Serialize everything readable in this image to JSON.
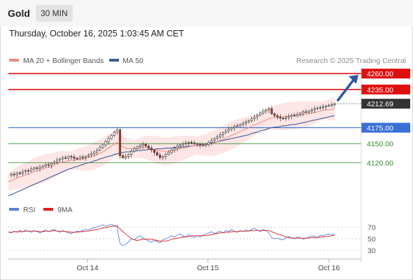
{
  "header": {
    "title": "Gold",
    "timeframe": "30 MIN",
    "datetime": "Thursday, October 16, 2025 1:03:45 AM CET"
  },
  "legend": {
    "ma20": "MA 20 + Bollinger Bands",
    "ma50": "MA 50",
    "credit": "Research © 2025 Trading Central"
  },
  "rsi_legend": {
    "rsi": "RSI",
    "ma": "9MA"
  },
  "colors": {
    "ma20": "#f08a80",
    "ma50": "#3b5b9a",
    "band": "#fde2e0",
    "resistance": "#e01010",
    "support": "#3a6fd8",
    "support_minor": "#2e8b2e",
    "arrow": "#2c57a8",
    "rsi": "#5b7fd8",
    "rsi_ma": "#e02020",
    "candle_up": "#ffffff",
    "candle_down": "#c0392b"
  },
  "chart_data": [
    {
      "type": "candlestick",
      "y_unit": "USD",
      "ylim": [
        4070,
        4270
      ],
      "x_ticks": [
        "Oct 14",
        "Oct 15",
        "Oct 16"
      ],
      "last_price": 4212.69,
      "levels": [
        {
          "label": "4260.00",
          "value": 4260,
          "kind": "resistance"
        },
        {
          "label": "4235.00",
          "value": 4235,
          "kind": "resistance"
        },
        {
          "label": "4175.00",
          "value": 4175,
          "kind": "support"
        },
        {
          "label": "4150.00",
          "value": 4150,
          "kind": "support-minor"
        },
        {
          "label": "4120.00",
          "value": 4120,
          "kind": "support-minor"
        }
      ],
      "last_price_label": "4212.69",
      "close_series": [
        4100,
        4102,
        4101,
        4104,
        4103,
        4106,
        4108,
        4107,
        4110,
        4112,
        4111,
        4113,
        4115,
        4117,
        4116,
        4119,
        4121,
        4124,
        4126,
        4128,
        4127,
        4130,
        4129,
        4127,
        4126,
        4129,
        4128,
        4130,
        4132,
        4134,
        4137,
        4140,
        4144,
        4148,
        4153,
        4158,
        4163,
        4168,
        4172,
        4131,
        4128,
        4130,
        4133,
        4138,
        4142,
        4145,
        4147,
        4149,
        4146,
        4143,
        4140,
        4136,
        4132,
        4128,
        4130,
        4133,
        4136,
        4140,
        4143,
        4146,
        4148,
        4150,
        4151,
        4152,
        4151,
        4150,
        4149,
        4148,
        4147,
        4149,
        4152,
        4155,
        4158,
        4161,
        4164,
        4167,
        4170,
        4173,
        4175,
        4177,
        4178,
        4180,
        4182,
        4184,
        4186,
        4189,
        4192,
        4195,
        4198,
        4201,
        4203,
        4205,
        4197,
        4194,
        4192,
        4190,
        4189,
        4191,
        4193,
        4195,
        4194,
        4196,
        4198,
        4200,
        4199,
        4201,
        4203,
        4205,
        4206,
        4207,
        4208,
        4209,
        4210,
        4211,
        4212.69
      ],
      "ma20_series": [
        4090,
        4092,
        4094,
        4096,
        4098,
        4099,
        4101,
        4102,
        4104,
        4106,
        4107,
        4109,
        4110,
        4112,
        4113,
        4114,
        4116,
        4118,
        4120,
        4121,
        4122,
        4123,
        4124,
        4124,
        4125,
        4126,
        4126,
        4127,
        4128,
        4129,
        4131,
        4133,
        4135,
        4137,
        4140,
        4143,
        4146,
        4149,
        4152,
        4148,
        4145,
        4143,
        4142,
        4142,
        4142,
        4143,
        4143,
        4144,
        4144,
        4143,
        4142,
        4141,
        4140,
        4139,
        4138,
        4138,
        4138,
        4139,
        4140,
        4141,
        4142,
        4143,
        4144,
        4145,
        4146,
        4147,
        4147,
        4147,
        4148,
        4148,
        4149,
        4150,
        4151,
        4153,
        4155,
        4157,
        4159,
        4161,
        4163,
        4165,
        4167,
        4169,
        4171,
        4173,
        4175,
        4177,
        4179,
        4181,
        4183,
        4185,
        4187,
        4189,
        4190,
        4191,
        4191,
        4192,
        4192,
        4193,
        4193,
        4194,
        4194,
        4195,
        4195,
        4196,
        4196,
        4197,
        4198,
        4199,
        4200,
        4201,
        4202,
        4203,
        4203,
        4204,
        4205
      ],
      "ma50_series": [
        4068,
        4070,
        4072,
        4074,
        4076,
        4078,
        4080,
        4082,
        4084,
        4086,
        4088,
        4090,
        4092,
        4094,
        4096,
        4098,
        4100,
        4102,
        4104,
        4106,
        4108,
        4110,
        4111,
        4113,
        4114,
        4116,
        4117,
        4119,
        4120,
        4121,
        4123,
        4124,
        4126,
        4127,
        4129,
        4130,
        4131,
        4133,
        4134,
        4135,
        4136,
        4137,
        4137,
        4138,
        4138,
        4139,
        4139,
        4140,
        4140,
        4141,
        4141,
        4141,
        4142,
        4142,
        4142,
        4143,
        4143,
        4143,
        4144,
        4144,
        4144,
        4145,
        4145,
        4146,
        4146,
        4147,
        4147,
        4148,
        4148,
        4149,
        4150,
        4151,
        4152,
        4153,
        4154,
        4155,
        4156,
        4157,
        4158,
        4159,
        4160,
        4161,
        4162,
        4163,
        4164,
        4166,
        4167,
        4168,
        4170,
        4171,
        4172,
        4174,
        4175,
        4176,
        4176,
        4177,
        4178,
        4178,
        4179,
        4180,
        4180,
        4181,
        4182,
        4183,
        4184,
        4185,
        4186,
        4187,
        4188,
        4189,
        4190,
        4191,
        4192,
        4193,
        4194
      ]
    },
    {
      "type": "line",
      "ylim": [
        20,
        80
      ],
      "y_ticks": [
        70,
        50,
        30
      ],
      "rsi_series": [
        62,
        60,
        63,
        61,
        64,
        62,
        65,
        63,
        61,
        64,
        62,
        60,
        63,
        65,
        62,
        64,
        66,
        63,
        61,
        64,
        62,
        60,
        59,
        61,
        63,
        62,
        64,
        66,
        65,
        67,
        69,
        70,
        72,
        74,
        71,
        73,
        75,
        72,
        70,
        42,
        38,
        40,
        45,
        50,
        48,
        52,
        55,
        51,
        49,
        46,
        44,
        47,
        45,
        43,
        48,
        50,
        52,
        55,
        53,
        56,
        58,
        55,
        53,
        57,
        54,
        52,
        55,
        53,
        56,
        58,
        60,
        62,
        59,
        61,
        63,
        60,
        64,
        62,
        66,
        63,
        61,
        64,
        62,
        65,
        63,
        66,
        68,
        65,
        62,
        66,
        64,
        60,
        52,
        50,
        51,
        49,
        48,
        52,
        54,
        51,
        50,
        53,
        52,
        49,
        51,
        53,
        55,
        54,
        52,
        56,
        55,
        57,
        58,
        57,
        58
      ],
      "rsi_ma_series": [
        61,
        61,
        62,
        62,
        62,
        62,
        63,
        63,
        63,
        63,
        63,
        62,
        62,
        63,
        63,
        63,
        64,
        63,
        63,
        63,
        62,
        62,
        61,
        61,
        61,
        62,
        62,
        63,
        63,
        64,
        65,
        66,
        67,
        68,
        69,
        70,
        71,
        72,
        72,
        67,
        62,
        58,
        54,
        50,
        48,
        47,
        48,
        49,
        49,
        49,
        49,
        48,
        47,
        46,
        46,
        46,
        47,
        49,
        50,
        51,
        52,
        53,
        53,
        54,
        55,
        55,
        55,
        55,
        55,
        55,
        56,
        57,
        58,
        59,
        60,
        60,
        61,
        61,
        62,
        62,
        62,
        63,
        63,
        63,
        63,
        64,
        64,
        64,
        64,
        64,
        64,
        64,
        62,
        60,
        58,
        57,
        55,
        53,
        52,
        51,
        51,
        51,
        51,
        51,
        51,
        51,
        52,
        52,
        52,
        53,
        53,
        54,
        54,
        55,
        56
      ]
    }
  ]
}
